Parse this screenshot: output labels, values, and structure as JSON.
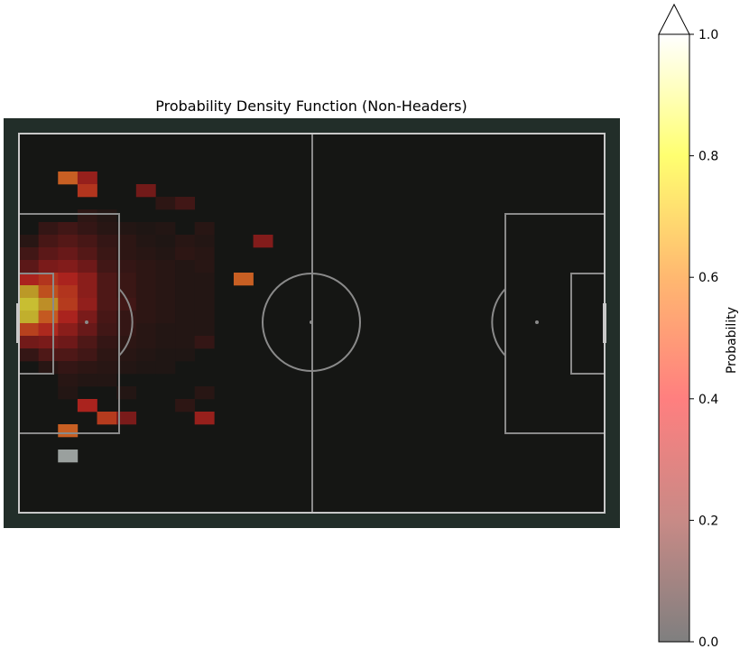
{
  "chart_data": {
    "type": "heatmap",
    "title": "Probability Density Function (Non-Headers)",
    "colorbar": {
      "label": "Probability",
      "ticks": [
        "0.0",
        "0.2",
        "0.4",
        "0.6",
        "0.8",
        "1.0"
      ],
      "range": [
        0,
        1
      ],
      "extend": "max",
      "colors": [
        "#7f7f7f",
        "#c88a86",
        "#ff7f7f",
        "#ffb870",
        "#ffff70",
        "#ffffff"
      ]
    },
    "pitch": {
      "background": "#222e29",
      "surface": "#151614",
      "line_color": "#8a8a8a",
      "border_color": "#c8c8c8"
    },
    "grid": {
      "cols": 30,
      "rows": 30
    },
    "bins": [
      {
        "c": 2,
        "r": 3,
        "v": 0.62
      },
      {
        "c": 3,
        "r": 3,
        "v": 0.25
      },
      {
        "c": 3,
        "r": 4,
        "v": 0.36
      },
      {
        "c": 6,
        "r": 4,
        "v": 0.16
      },
      {
        "c": 7,
        "r": 5,
        "v": 0.05
      },
      {
        "c": 8,
        "r": 5,
        "v": 0.08
      },
      {
        "c": 3,
        "r": 6,
        "v": 0.05
      },
      {
        "c": 4,
        "r": 6,
        "v": 0.03
      },
      {
        "c": 1,
        "r": 7,
        "v": 0.06
      },
      {
        "c": 2,
        "r": 7,
        "v": 0.08
      },
      {
        "c": 3,
        "r": 7,
        "v": 0.06
      },
      {
        "c": 4,
        "r": 7,
        "v": 0.04
      },
      {
        "c": 5,
        "r": 7,
        "v": 0.03
      },
      {
        "c": 6,
        "r": 7,
        "v": 0.02
      },
      {
        "c": 7,
        "r": 7,
        "v": 0.03
      },
      {
        "c": 9,
        "r": 7,
        "v": 0.04
      },
      {
        "c": 0,
        "r": 8,
        "v": 0.04
      },
      {
        "c": 1,
        "r": 8,
        "v": 0.09
      },
      {
        "c": 2,
        "r": 8,
        "v": 0.11
      },
      {
        "c": 3,
        "r": 8,
        "v": 0.09
      },
      {
        "c": 4,
        "r": 8,
        "v": 0.06
      },
      {
        "c": 5,
        "r": 8,
        "v": 0.05
      },
      {
        "c": 6,
        "r": 8,
        "v": 0.03
      },
      {
        "c": 7,
        "r": 8,
        "v": 0.02
      },
      {
        "c": 8,
        "r": 8,
        "v": 0.04
      },
      {
        "c": 9,
        "r": 8,
        "v": 0.03
      },
      {
        "c": 12,
        "r": 8,
        "v": 0.2
      },
      {
        "c": 0,
        "r": 9,
        "v": 0.08
      },
      {
        "c": 1,
        "r": 9,
        "v": 0.12
      },
      {
        "c": 2,
        "r": 9,
        "v": 0.14
      },
      {
        "c": 3,
        "r": 9,
        "v": 0.11
      },
      {
        "c": 4,
        "r": 9,
        "v": 0.07
      },
      {
        "c": 5,
        "r": 9,
        "v": 0.05
      },
      {
        "c": 6,
        "r": 9,
        "v": 0.04
      },
      {
        "c": 7,
        "r": 9,
        "v": 0.03
      },
      {
        "c": 8,
        "r": 9,
        "v": 0.05
      },
      {
        "c": 9,
        "r": 9,
        "v": 0.04
      },
      {
        "c": 0,
        "r": 10,
        "v": 0.12
      },
      {
        "c": 1,
        "r": 10,
        "v": 0.18
      },
      {
        "c": 2,
        "r": 10,
        "v": 0.2
      },
      {
        "c": 3,
        "r": 10,
        "v": 0.15
      },
      {
        "c": 4,
        "r": 10,
        "v": 0.08
      },
      {
        "c": 5,
        "r": 10,
        "v": 0.06
      },
      {
        "c": 6,
        "r": 10,
        "v": 0.05
      },
      {
        "c": 7,
        "r": 10,
        "v": 0.04
      },
      {
        "c": 8,
        "r": 10,
        "v": 0.03
      },
      {
        "c": 9,
        "r": 10,
        "v": 0.04
      },
      {
        "c": 0,
        "r": 11,
        "v": 0.3
      },
      {
        "c": 1,
        "r": 11,
        "v": 0.36
      },
      {
        "c": 2,
        "r": 11,
        "v": 0.3
      },
      {
        "c": 3,
        "r": 11,
        "v": 0.22
      },
      {
        "c": 4,
        "r": 11,
        "v": 0.1
      },
      {
        "c": 5,
        "r": 11,
        "v": 0.07
      },
      {
        "c": 6,
        "r": 11,
        "v": 0.05
      },
      {
        "c": 7,
        "r": 11,
        "v": 0.04
      },
      {
        "c": 8,
        "r": 11,
        "v": 0.03
      },
      {
        "c": 9,
        "r": 11,
        "v": 0.03
      },
      {
        "c": 11,
        "r": 11,
        "v": 0.62
      },
      {
        "c": 0,
        "r": 12,
        "v": 0.78
      },
      {
        "c": 1,
        "r": 12,
        "v": 0.45
      },
      {
        "c": 2,
        "r": 12,
        "v": 0.36
      },
      {
        "c": 3,
        "r": 12,
        "v": 0.22
      },
      {
        "c": 4,
        "r": 12,
        "v": 0.1
      },
      {
        "c": 5,
        "r": 12,
        "v": 0.07
      },
      {
        "c": 6,
        "r": 12,
        "v": 0.05
      },
      {
        "c": 7,
        "r": 12,
        "v": 0.04
      },
      {
        "c": 8,
        "r": 12,
        "v": 0.03
      },
      {
        "c": 9,
        "r": 12,
        "v": 0.03
      },
      {
        "c": 0,
        "r": 13,
        "v": 0.9
      },
      {
        "c": 1,
        "r": 13,
        "v": 0.75
      },
      {
        "c": 2,
        "r": 13,
        "v": 0.38
      },
      {
        "c": 3,
        "r": 13,
        "v": 0.24
      },
      {
        "c": 4,
        "r": 13,
        "v": 0.1
      },
      {
        "c": 5,
        "r": 13,
        "v": 0.08
      },
      {
        "c": 6,
        "r": 13,
        "v": 0.05
      },
      {
        "c": 7,
        "r": 13,
        "v": 0.04
      },
      {
        "c": 8,
        "r": 13,
        "v": 0.03
      },
      {
        "c": 9,
        "r": 13,
        "v": 0.03
      },
      {
        "c": 0,
        "r": 14,
        "v": 0.85
      },
      {
        "c": 1,
        "r": 14,
        "v": 0.55
      },
      {
        "c": 2,
        "r": 14,
        "v": 0.3
      },
      {
        "c": 3,
        "r": 14,
        "v": 0.18
      },
      {
        "c": 4,
        "r": 14,
        "v": 0.09
      },
      {
        "c": 5,
        "r": 14,
        "v": 0.06
      },
      {
        "c": 6,
        "r": 14,
        "v": 0.05
      },
      {
        "c": 7,
        "r": 14,
        "v": 0.04
      },
      {
        "c": 8,
        "r": 14,
        "v": 0.03
      },
      {
        "c": 9,
        "r": 14,
        "v": 0.03
      },
      {
        "c": 0,
        "r": 15,
        "v": 0.4
      },
      {
        "c": 1,
        "r": 15,
        "v": 0.32
      },
      {
        "c": 2,
        "r": 15,
        "v": 0.22
      },
      {
        "c": 3,
        "r": 15,
        "v": 0.14
      },
      {
        "c": 4,
        "r": 15,
        "v": 0.08
      },
      {
        "c": 5,
        "r": 15,
        "v": 0.06
      },
      {
        "c": 6,
        "r": 15,
        "v": 0.04
      },
      {
        "c": 7,
        "r": 15,
        "v": 0.03
      },
      {
        "c": 8,
        "r": 15,
        "v": 0.03
      },
      {
        "c": 9,
        "r": 15,
        "v": 0.03
      },
      {
        "c": 0,
        "r": 16,
        "v": 0.16
      },
      {
        "c": 1,
        "r": 16,
        "v": 0.18
      },
      {
        "c": 2,
        "r": 16,
        "v": 0.15
      },
      {
        "c": 3,
        "r": 16,
        "v": 0.1
      },
      {
        "c": 4,
        "r": 16,
        "v": 0.06
      },
      {
        "c": 5,
        "r": 16,
        "v": 0.05
      },
      {
        "c": 6,
        "r": 16,
        "v": 0.04
      },
      {
        "c": 7,
        "r": 16,
        "v": 0.03
      },
      {
        "c": 8,
        "r": 16,
        "v": 0.03
      },
      {
        "c": 9,
        "r": 16,
        "v": 0.06
      },
      {
        "c": 0,
        "r": 17,
        "v": 0.06
      },
      {
        "c": 1,
        "r": 17,
        "v": 0.1
      },
      {
        "c": 2,
        "r": 17,
        "v": 0.1
      },
      {
        "c": 3,
        "r": 17,
        "v": 0.08
      },
      {
        "c": 4,
        "r": 17,
        "v": 0.05
      },
      {
        "c": 5,
        "r": 17,
        "v": 0.04
      },
      {
        "c": 6,
        "r": 17,
        "v": 0.03
      },
      {
        "c": 7,
        "r": 17,
        "v": 0.02
      },
      {
        "c": 8,
        "r": 17,
        "v": 0.02
      },
      {
        "c": 1,
        "r": 18,
        "v": 0.04
      },
      {
        "c": 2,
        "r": 18,
        "v": 0.06
      },
      {
        "c": 3,
        "r": 18,
        "v": 0.05
      },
      {
        "c": 4,
        "r": 18,
        "v": 0.04
      },
      {
        "c": 5,
        "r": 18,
        "v": 0.03
      },
      {
        "c": 6,
        "r": 18,
        "v": 0.02
      },
      {
        "c": 7,
        "r": 18,
        "v": 0.02
      },
      {
        "c": 2,
        "r": 19,
        "v": 0.04
      },
      {
        "c": 3,
        "r": 19,
        "v": 0.03
      },
      {
        "c": 4,
        "r": 19,
        "v": 0.03
      },
      {
        "c": 2,
        "r": 20,
        "v": 0.03
      },
      {
        "c": 5,
        "r": 20,
        "v": 0.03
      },
      {
        "c": 9,
        "r": 20,
        "v": 0.04
      },
      {
        "c": 3,
        "r": 21,
        "v": 0.3
      },
      {
        "c": 8,
        "r": 21,
        "v": 0.05
      },
      {
        "c": 4,
        "r": 22,
        "v": 0.38
      },
      {
        "c": 5,
        "r": 22,
        "v": 0.18
      },
      {
        "c": 9,
        "r": 22,
        "v": 0.25
      },
      {
        "c": 2,
        "r": 23,
        "v": 0.62
      },
      {
        "c": 2,
        "r": 25,
        "v": 0.02
      }
    ]
  }
}
